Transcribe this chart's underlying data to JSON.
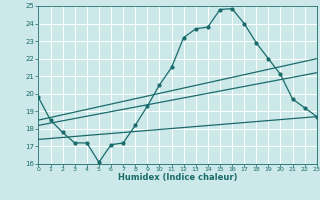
{
  "xlabel": "Humidex (Indice chaleur)",
  "xlim": [
    0,
    23
  ],
  "ylim": [
    16,
    25
  ],
  "yticks": [
    16,
    17,
    18,
    19,
    20,
    21,
    22,
    23,
    24,
    25
  ],
  "xticks": [
    0,
    1,
    2,
    3,
    4,
    5,
    6,
    7,
    8,
    9,
    10,
    11,
    12,
    13,
    14,
    15,
    16,
    17,
    18,
    19,
    20,
    21,
    22,
    23
  ],
  "bg_color": "#cce8e8",
  "grid_color": "#b0d8d8",
  "line_color": "#1a6b6b",
  "line1_x": [
    0,
    1,
    2,
    3,
    4,
    5,
    6,
    7,
    8,
    9,
    10,
    11,
    12,
    13,
    14,
    15,
    16,
    17,
    18,
    19,
    20,
    21,
    22,
    23
  ],
  "line1_y": [
    19.8,
    18.5,
    17.8,
    17.2,
    17.2,
    16.1,
    17.1,
    17.2,
    18.2,
    19.3,
    20.5,
    21.5,
    23.2,
    23.7,
    23.8,
    24.8,
    24.85,
    24.0,
    22.9,
    22.0,
    21.1,
    19.7,
    19.2,
    18.7
  ],
  "line2_x": [
    0,
    23
  ],
  "line2_y": [
    18.5,
    22.0
  ],
  "line3_x": [
    0,
    23
  ],
  "line3_y": [
    18.2,
    21.2
  ],
  "line4_x": [
    0,
    23
  ],
  "line4_y": [
    17.4,
    18.7
  ]
}
